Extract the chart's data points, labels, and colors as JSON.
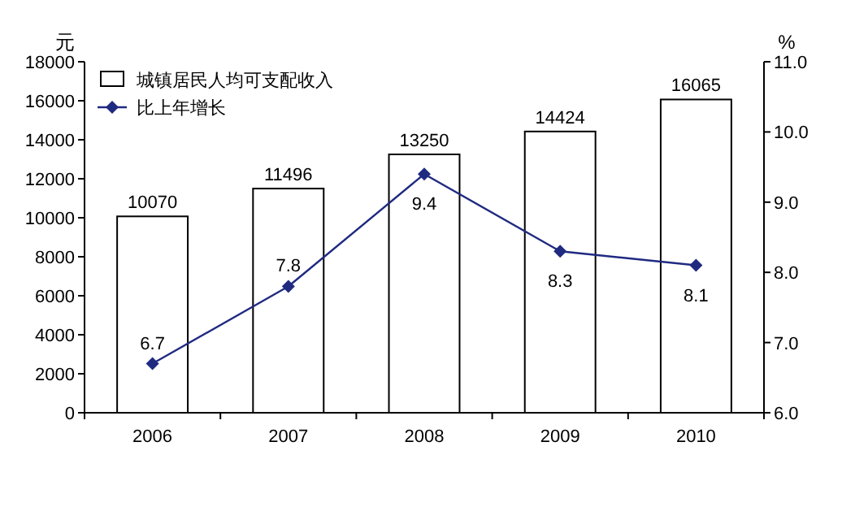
{
  "chart_data": {
    "type": "bar",
    "categories": [
      "2006",
      "2007",
      "2008",
      "2009",
      "2010"
    ],
    "series": [
      {
        "name": "城镇居民人均可支配收入",
        "color": "#ffffff",
        "values": [
          10070,
          11496,
          13250,
          14424,
          16065
        ]
      },
      {
        "name": "比上年增长",
        "type": "line",
        "axis": "y2",
        "color": "#1f2a80",
        "values": [
          6.7,
          7.8,
          9.4,
          8.3,
          8.1
        ]
      }
    ],
    "ylabel": "元",
    "y2label": "%",
    "ylim": [
      0,
      18000
    ],
    "yticks": [
      0,
      2000,
      4000,
      6000,
      8000,
      10000,
      12000,
      14000,
      16000,
      18000
    ],
    "y2lim": [
      6,
      11
    ],
    "y2ticks": [
      {
        "value": 6,
        "label": "6.0"
      },
      {
        "value": 7,
        "label": "7.0"
      },
      {
        "value": 8,
        "label": "8.0"
      },
      {
        "value": 9,
        "label": "9.0"
      },
      {
        "value": 10,
        "label": "10.0"
      },
      {
        "value": 11,
        "label": "11.0"
      }
    ],
    "data_labels": true,
    "legend": "top left",
    "marker": "diamond",
    "line_style": "solid",
    "grid": false
  }
}
